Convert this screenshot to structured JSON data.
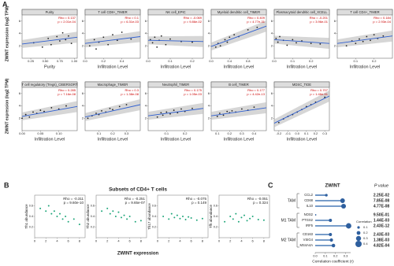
{
  "panel_labels": [
    "A",
    "B",
    "C"
  ],
  "panel_a": {
    "ylabel": "ZWINT expression (log2 TPM)",
    "xlabel": "Infiltration Level",
    "ylim": [
      0,
      7
    ],
    "yticks": [
      2,
      4,
      6
    ],
    "plots": [
      {
        "title": "Purity",
        "xlabel": "Purity",
        "rho": "Rho = 0.137",
        "p": "p = 2.01e-04",
        "xlim": [
          0.1,
          1.05
        ],
        "xticks": [
          0.25,
          {
            "value": 0.5,
            "label": "0.50"
          },
          0.75,
          {
            "value": 1,
            "label": "1.00"
          }
        ],
        "x": [
          0.3,
          0.45,
          0.55,
          0.6,
          0.7,
          0.75,
          0.8,
          0.85,
          0.9,
          0.95
        ],
        "y": [
          2.5,
          1.8,
          3.2,
          2.2,
          3.5,
          2.8,
          4.1,
          3.0,
          3.6,
          2.4
        ],
        "fit": [
          2.3,
          3.4
        ]
      },
      {
        "title": "T cell CD8+_TIMER",
        "rho": "Rho = 0.1",
        "p": "p = 6.31e-03",
        "xlim": [
          0,
          0.6
        ],
        "xticks": [
          {
            "value": 0,
            "label": "0.0"
          },
          0.2,
          0.4
        ],
        "x": [
          0.05,
          0.1,
          0.12,
          0.15,
          0.2,
          0.25,
          0.3,
          0.35,
          0.4,
          0.5
        ],
        "y": [
          2,
          3,
          1.5,
          2.6,
          3.4,
          2.2,
          3.8,
          2.9,
          4.2,
          3.1
        ],
        "fit": [
          2.4,
          3.5
        ]
      },
      {
        "title": "NK cell_EPIC",
        "rho": "Rho = -0.069",
        "p": "p = 9.86e-02",
        "xlim": [
          0,
          0.25
        ],
        "xticks": [
          {
            "value": 0,
            "label": "0.0"
          },
          0.1,
          0.2
        ],
        "x": [
          0.01,
          0.02,
          0.03,
          0.04,
          0.05,
          0.06,
          0.08,
          0.1,
          0.15,
          0.2
        ],
        "y": [
          3,
          2.5,
          3.4,
          1.8,
          2.9,
          3.6,
          2.2,
          3.1,
          2.7,
          2.6
        ],
        "fit": [
          2.9,
          2.7
        ]
      },
      {
        "title": "Myeloid dendritic cell_TIMER",
        "rho": "Rho = 0.409",
        "p": "p = 4.77e-31",
        "xlim": [
          0,
          1.2
        ],
        "xticks": [
          {
            "value": 0,
            "label": "0.0"
          },
          0.4,
          0.8
        ],
        "x": [
          0.1,
          0.15,
          0.2,
          0.3,
          0.35,
          0.4,
          0.5,
          0.6,
          0.8,
          1.0
        ],
        "y": [
          1.8,
          2.4,
          2.0,
          3.0,
          2.6,
          3.4,
          3.8,
          3.5,
          4.6,
          5.0
        ],
        "fit": [
          1.9,
          5.2
        ]
      },
      {
        "title": "Plasmacytoid dendritic cell_XCELL",
        "rho": "Rho = -0.201",
        "p": "p = 3.96e-01",
        "xlim": [
          0,
          0.3
        ],
        "xticks": [
          {
            "value": 0,
            "label": "0.0"
          },
          0.1,
          0.2
        ],
        "x": [
          0.01,
          0.02,
          0.03,
          0.05,
          0.07,
          0.1,
          0.12,
          0.15,
          0.2,
          0.25
        ],
        "y": [
          3.2,
          2.6,
          3.5,
          2.9,
          2.1,
          3.0,
          2.5,
          2.8,
          2.4,
          2.3
        ],
        "fit": [
          3.0,
          2.4
        ]
      },
      {
        "title": "T cell CD4+_TIMER",
        "rho": "Rho = 0.184",
        "p": "p = 2.93e-04",
        "xlim": [
          0,
          0.3
        ],
        "xticks": [
          0.1,
          0.2
        ],
        "x": [
          0.05,
          0.08,
          0.1,
          0.12,
          0.14,
          0.16,
          0.18,
          0.2,
          0.22,
          0.25
        ],
        "y": [
          2.0,
          2.8,
          2.4,
          3.1,
          2.7,
          3.5,
          2.9,
          3.8,
          3.2,
          3.6
        ],
        "fit": [
          2.4,
          3.6
        ]
      },
      {
        "title": "T cell regulatory (Tregs)_CIBERSORT",
        "rho": "Rho = 0.285",
        "p": "p = 7.16e-08",
        "xlim": [
          0,
          0.15
        ],
        "xticks": [
          {
            "value": 0,
            "label": "0.00"
          },
          0.05,
          {
            "value": 0.1,
            "label": "0.10"
          }
        ],
        "x": [
          0.0,
          0.01,
          0.02,
          0.03,
          0.04,
          0.05,
          0.06,
          0.08,
          0.1,
          0.12
        ],
        "y": [
          2.0,
          2.6,
          2.2,
          3.0,
          2.8,
          3.3,
          3.1,
          3.7,
          3.5,
          4.0
        ],
        "fit": [
          2.3,
          3.9
        ]
      },
      {
        "title": "Macrophage_TIMER",
        "rho": "Rho = 0.3",
        "p": "p = 1.38e-08",
        "xlim": [
          0,
          0.4
        ],
        "xticks": [
          0.1,
          0.2,
          0.3
        ],
        "x": [
          0.02,
          0.05,
          0.08,
          0.1,
          0.12,
          0.15,
          0.18,
          0.2,
          0.25,
          0.3
        ],
        "y": [
          2.0,
          2.4,
          2.8,
          2.6,
          3.2,
          3.0,
          3.6,
          3.4,
          3.9,
          4.2
        ],
        "fit": [
          2.2,
          4.2
        ]
      },
      {
        "title": "Neutrophil_TIMER",
        "rho": "Rho = 0.175",
        "p": "p = 1.05e-03",
        "xlim": [
          0,
          0.3
        ],
        "xticks": [
          0.1,
          0.2
        ],
        "x": [
          0.05,
          0.07,
          0.08,
          0.1,
          0.12,
          0.14,
          0.16,
          0.18,
          0.2,
          0.24
        ],
        "y": [
          2.2,
          2.9,
          2.5,
          3.0,
          2.7,
          3.3,
          2.9,
          3.5,
          3.1,
          3.6
        ],
        "fit": [
          2.4,
          3.6
        ]
      },
      {
        "title": "B cell_TIMER",
        "rho": "Rho = 0.177",
        "p": "p = 4.42e-13",
        "xlim": [
          0.05,
          0.5
        ],
        "xticks": [
          0.1,
          0.2,
          0.3,
          0.4
        ],
        "x": [
          0.1,
          0.12,
          0.15,
          0.18,
          0.2,
          0.22,
          0.25,
          0.3,
          0.35,
          0.4
        ],
        "y": [
          2.3,
          2.8,
          2.5,
          3.1,
          2.9,
          3.2,
          3.0,
          3.5,
          3.3,
          3.8
        ],
        "fit": [
          2.4,
          3.7
        ]
      },
      {
        "title": "MDSC_TIDE",
        "rho": "Rho = 0.707",
        "p": "p = 1.46e-51",
        "xlim": [
          -0.25,
          0.35
        ],
        "xticks": [
          -0.2,
          -0.1,
          {
            "value": 0,
            "label": "0.0"
          },
          0.1,
          0.2,
          0.3
        ],
        "x": [
          -0.2,
          -0.15,
          -0.1,
          -0.05,
          0.0,
          0.05,
          0.1,
          0.15,
          0.2,
          0.3
        ],
        "y": [
          1.3,
          1.9,
          2.3,
          2.6,
          3.0,
          3.4,
          3.9,
          4.2,
          4.6,
          5.4
        ],
        "fit": [
          1.2,
          5.6
        ]
      }
    ]
  },
  "panel_b": {
    "title": "Subsets of CD4+ T cells",
    "xlabel": "ZWINT expression",
    "xlim": [
      0,
      9
    ],
    "xticks": [
      0,
      2,
      4,
      6,
      8
    ],
    "ylim": [
      0,
      0.8
    ],
    "yticks": [
      0.2,
      0.4,
      0.6
    ],
    "x": [
      1,
      2,
      2.5,
      3,
      3.5,
      4,
      4.5,
      5,
      5.5,
      6,
      7,
      8
    ],
    "plots": [
      {
        "ylabel": "Th1 abundance",
        "rho": "Rho = -0.311",
        "p": "p = 9.60e-10",
        "y": [
          0.55,
          0.5,
          0.6,
          0.45,
          0.5,
          0.4,
          0.45,
          0.35,
          0.4,
          0.3,
          0.35,
          0.25
        ]
      },
      {
        "ylabel": "Th2 abundance",
        "rho": "Rho = -0.251",
        "p": "p = 9.65e-07",
        "y": [
          0.5,
          0.55,
          0.45,
          0.5,
          0.4,
          0.48,
          0.38,
          0.42,
          0.35,
          0.4,
          0.3,
          0.32
        ]
      },
      {
        "ylabel": "Th17 abundance",
        "rho": "Rho = -0.075",
        "p": "p = 0.149",
        "y": [
          0.4,
          0.35,
          0.45,
          0.38,
          0.42,
          0.36,
          0.4,
          0.34,
          0.39,
          0.37,
          0.33,
          0.36
        ]
      },
      {
        "ylabel": "Tfh abundance",
        "rho": "Rho = -0.051",
        "p": "p = 0.324",
        "y": [
          0.3,
          0.4,
          0.35,
          0.45,
          0.3,
          0.38,
          0.42,
          0.32,
          0.36,
          0.4,
          0.34,
          0.33
        ]
      }
    ]
  },
  "panel_c": {
    "title": "ZWINT",
    "p_header": "P value",
    "xlabel": "Correlation coefficient (r)",
    "xlim": [
      0,
      0.35
    ],
    "xticks": [
      {
        "value": 0,
        "label": "0.0"
      },
      0.1,
      0.2,
      0.3
    ],
    "legend_title": "Correlation",
    "legend_sizes": [
      0.1,
      0.2,
      0.3,
      0.4
    ],
    "groups": [
      {
        "name": "TAM",
        "genes": [
          "CCL2",
          "CD68",
          "IL10"
        ],
        "values": [
          0.11,
          0.27,
          0.28
        ],
        "p": [
          "2.25E-02",
          "7.85E-08",
          "4.77E-08"
        ]
      },
      {
        "name": "M1 TAM",
        "genes": [
          "NOS2",
          "PTGS2",
          "IRF5"
        ],
        "values": [
          0.005,
          0.15,
          0.33
        ],
        "p": [
          "9.50E-01",
          "1.44E-03",
          "2.43E-12"
        ]
      },
      {
        "name": "M2 TAM",
        "genes": [
          "CD163",
          "VSIG4",
          "MS4A4A"
        ],
        "values": [
          0.15,
          0.16,
          0.18
        ],
        "p": [
          "2.43E-03",
          "1.38E-03",
          "4.82E-04"
        ]
      }
    ]
  }
}
